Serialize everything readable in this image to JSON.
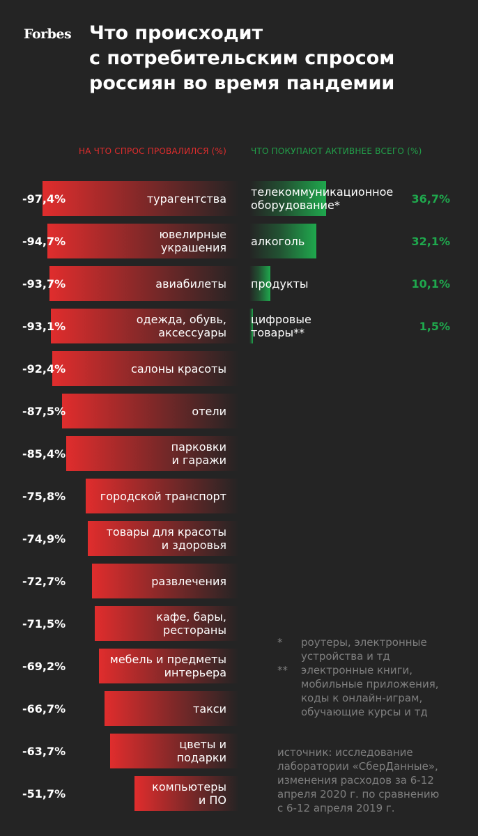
{
  "brand": "Forbes",
  "title_lines": [
    "Что происходит",
    "с потребительским спросом",
    "россиян во время пандемии"
  ],
  "colors": {
    "background": "#242424",
    "decline": "#e02d2d",
    "growth": "#1fa84d",
    "note_text": "#7f7f7f"
  },
  "chart_data": [
    {
      "type": "bar",
      "title": "НА ЧТО СПРОС ПРОВАЛИЛСЯ (%)",
      "categories": [
        [
          "турагентства"
        ],
        [
          "ювелирные",
          "украшения"
        ],
        [
          "авиабилеты"
        ],
        [
          "одежда, обувь,",
          "аксессуары"
        ],
        [
          "салоны красоты"
        ],
        [
          "отели"
        ],
        [
          "парковки",
          "и гаражи"
        ],
        [
          "городской транспорт"
        ],
        [
          "товары для красоты",
          "и здоровья"
        ],
        [
          "развлечения"
        ],
        [
          "кафе, бары,",
          "рестораны"
        ],
        [
          "мебель и предметы",
          "интерьера"
        ],
        [
          "такси"
        ],
        [
          "цветы и",
          "подарки"
        ],
        [
          "компьютеры",
          "и ПО"
        ]
      ],
      "values": [
        -97.4,
        -94.7,
        -93.7,
        -93.1,
        -92.4,
        -87.5,
        -85.4,
        -75.8,
        -74.9,
        -72.7,
        -71.5,
        -69.2,
        -66.7,
        -63.7,
        -51.7
      ],
      "value_labels": [
        "-97,4%",
        "-94,7%",
        "-93,7%",
        "-93,1%",
        "-92,4%",
        "-87,5%",
        "-85,4%",
        "-75,8%",
        "-74,9%",
        "-72,7%",
        "-71,5%",
        "-69,2%",
        "-66,7%",
        "-63,7%",
        "-51,7%"
      ],
      "ylim": [
        -100,
        0
      ]
    },
    {
      "type": "bar",
      "title": "ЧТО ПОКУПАЮТ АКТИВНЕЕ ВСЕГО (%)",
      "categories": [
        [
          "телекоммуникационное",
          "оборудование*"
        ],
        [
          "алкоголь"
        ],
        [
          "продукты"
        ],
        [
          "цифровые",
          "товары**"
        ]
      ],
      "values": [
        36.7,
        32.1,
        10.1,
        1.5
      ],
      "value_labels": [
        "36,7%",
        "32,1%",
        "10,1%",
        "1,5%"
      ],
      "ylim": [
        0,
        40
      ]
    }
  ],
  "notes": [
    {
      "mark": "*",
      "lines": [
        "роутеры, электронные",
        "устройства и тд"
      ]
    },
    {
      "mark": "**",
      "lines": [
        "электронные книги,",
        "мобильные приложения,",
        "коды к онлайн-играм,",
        "обучающие курсы и тд"
      ]
    }
  ],
  "source_lines": [
    "источник: исследование",
    "лаборатории «СберДанные»,",
    "изменения расходов за 6-12",
    "апреля 2020 г. по сравнению",
    "с 6-12 апреля 2019 г."
  ]
}
